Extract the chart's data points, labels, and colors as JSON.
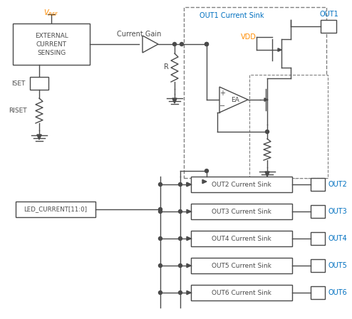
{
  "bg_color": "#ffffff",
  "line_color": "#4a4a4a",
  "orange_color": "#FF8C00",
  "blue_color": "#0070C0",
  "dashed_color": "#808080",
  "figsize": [
    4.94,
    4.48
  ],
  "dpi": 100,
  "out_sink_labels": [
    "OUT2 Current Sink",
    "OUT3 Current Sink",
    "OUT4 Current Sink",
    "OUT5 Current Sink",
    "OUT6 Current Sink"
  ],
  "out_labels": [
    "OUT2",
    "OUT3",
    "OUT4",
    "OUT5",
    "OUT6"
  ]
}
